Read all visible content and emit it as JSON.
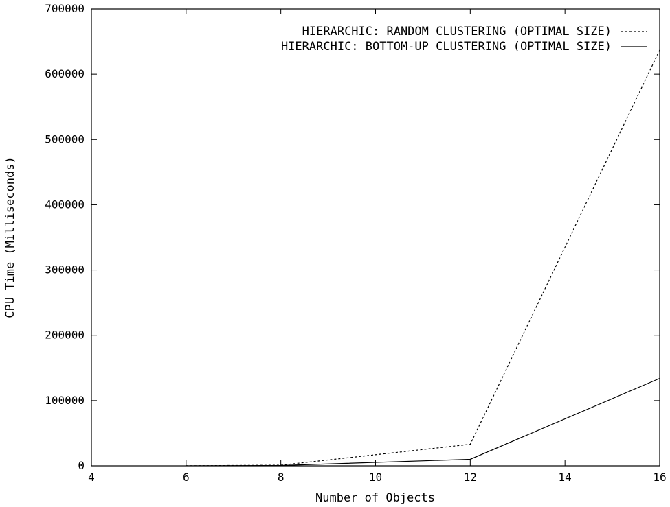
{
  "chart_data": {
    "type": "line",
    "title": "",
    "xlabel": "Number of Objects",
    "ylabel": "CPU Time (Milliseconds)",
    "xlim": [
      4,
      16
    ],
    "ylim": [
      0,
      700000
    ],
    "x_ticks": [
      "4",
      "6",
      "8",
      "10",
      "12",
      "14",
      "16"
    ],
    "y_ticks": [
      "0",
      "100000",
      "200000",
      "300000",
      "400000",
      "500000",
      "600000",
      "700000"
    ],
    "grid": false,
    "legend_position": "top-right",
    "series": [
      {
        "name": "HIERARCHIC: RANDOM CLUSTERING (OPTIMAL SIZE)",
        "line_style": "dotted",
        "color": "#000000",
        "x": [
          6,
          8,
          12,
          16
        ],
        "y": [
          100,
          1000,
          33000,
          637000
        ]
      },
      {
        "name": "HIERARCHIC: BOTTOM-UP CLUSTERING (OPTIMAL SIZE)",
        "line_style": "solid",
        "color": "#000000",
        "x": [
          6,
          8,
          12,
          16
        ],
        "y": [
          50,
          500,
          10000,
          134000
        ]
      }
    ]
  }
}
